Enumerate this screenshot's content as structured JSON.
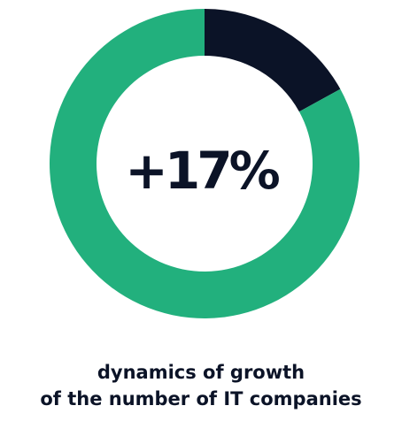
{
  "chart_data": {
    "type": "pie",
    "variant": "donut",
    "center_text": "+17%",
    "slices": [
      {
        "value": 17,
        "color": "#0b1327"
      },
      {
        "value": 83,
        "color": "#22b07d"
      }
    ],
    "caption_lines": [
      "dynamics of growth",
      "of the number of IT companies"
    ]
  }
}
